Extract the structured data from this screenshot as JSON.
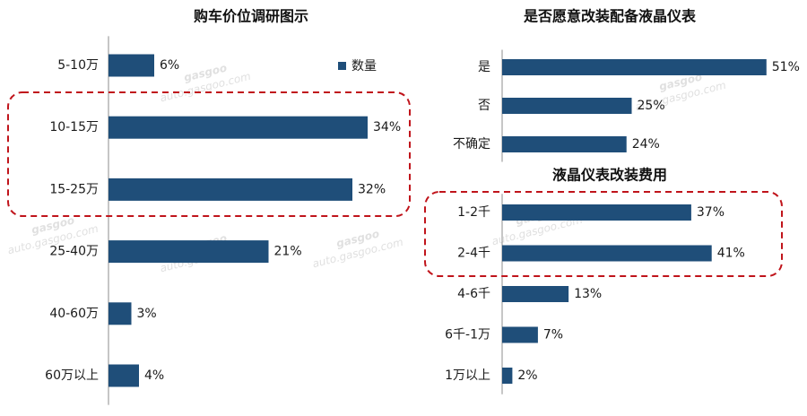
{
  "colors": {
    "bar": "#1F4E79",
    "axis": "#8c8c8c",
    "highlight": "#C0141B"
  },
  "watermark": {
    "brand": "gasgoo",
    "site": "auto.gasgoo.com",
    "cn": "盖世汽车"
  },
  "chart_data": [
    {
      "type": "bar",
      "orientation": "horizontal",
      "title": "购车价位调研图示",
      "categories": [
        "5-10万",
        "10-15万",
        "15-25万",
        "25-40万",
        "40-60万",
        "60万以上"
      ],
      "values": [
        6,
        34,
        32,
        21,
        3,
        4
      ],
      "value_labels": [
        "6%",
        "34%",
        "32%",
        "21%",
        "3%",
        "4%"
      ],
      "legend": {
        "entries": [
          "数量"
        ],
        "placement": "top-right"
      },
      "highlighted": [
        "10-15万",
        "15-25万"
      ]
    },
    {
      "type": "bar",
      "orientation": "horizontal",
      "title": "是否愿意改装配备液晶仪表",
      "categories": [
        "是",
        "否",
        "不确定"
      ],
      "values": [
        51,
        25,
        24
      ],
      "value_labels": [
        "51%",
        "25%",
        "24%"
      ],
      "highlighted": []
    },
    {
      "type": "bar",
      "orientation": "horizontal",
      "title": "液晶仪表改装费用",
      "categories": [
        "1-2千",
        "2-4千",
        "4-6千",
        "6千-1万",
        "1万以上"
      ],
      "values": [
        37,
        41,
        13,
        7,
        2
      ],
      "value_labels": [
        "37%",
        "41%",
        "13%",
        "7%",
        "2%"
      ],
      "highlighted": [
        "1-2千",
        "2-4千"
      ]
    }
  ]
}
